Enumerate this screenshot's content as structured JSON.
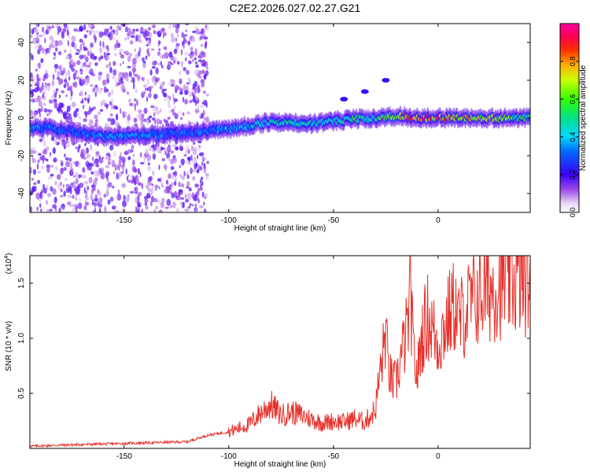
{
  "figure": {
    "title": "C2E2.2026.027.02.27.G21"
  },
  "chart_data": [
    {
      "type": "heatmap",
      "title": "C2E2.2026.027.02.27.G21",
      "xlabel": "Height of straight line (km)",
      "ylabel": "Frequency (Hz)",
      "xlim": [
        -195,
        44
      ],
      "ylim": [
        -50,
        50
      ],
      "x_ticks": [
        -150,
        -100,
        -50,
        0
      ],
      "y_ticks": [
        -40,
        -20,
        0,
        20,
        40
      ],
      "colorbar": {
        "label": "Normalized spectral amplitude",
        "range": [
          0.0,
          1.0
        ],
        "ticks": [
          0.0,
          0.2,
          0.4,
          0.6,
          0.8
        ],
        "tick_labels": [
          "0.0",
          "0.2",
          "0.4",
          "0.6",
          "0.8"
        ],
        "colormap": "rainbow (white-violet-blue-cyan-green-yellow-red-magenta)"
      },
      "ridge": {
        "description_points_x": [
          -190,
          -175,
          -160,
          -140,
          -120,
          -100,
          -80,
          -60,
          -45,
          -30,
          -20,
          -10,
          0,
          20,
          44
        ],
        "frequency_y": [
          -5,
          -7,
          -10,
          -9,
          -8,
          -6,
          -2,
          -3,
          -1,
          0,
          1,
          0,
          0,
          0,
          0
        ],
        "amplitude": [
          0.35,
          0.3,
          0.35,
          0.35,
          0.3,
          0.35,
          0.45,
          0.45,
          0.5,
          0.55,
          0.7,
          0.85,
          0.85,
          0.7,
          0.5
        ]
      },
      "secondary_branch": {
        "x": [
          -45,
          -35,
          -25
        ],
        "y": [
          10,
          14,
          20
        ]
      }
    },
    {
      "type": "line",
      "xlabel": "Height of straight line (km)",
      "ylabel": "SNR (10 * v/v)",
      "y_multiplier_label": "(x10",
      "y_multiplier_exponent": "4",
      "xlim": [
        -195,
        44
      ],
      "ylim": [
        0,
        17500
      ],
      "x_ticks": [
        -150,
        -100,
        -50,
        0
      ],
      "y_ticks": [
        5000,
        10000,
        15000
      ],
      "y_tick_labels": [
        "0.5",
        "1.0",
        "1.5"
      ],
      "color": "#e8302a",
      "series": [
        {
          "x": [
            -195,
            -180,
            -160,
            -140,
            -120,
            -110,
            -100,
            -90,
            -85,
            -80,
            -75,
            -70,
            -65,
            -60,
            -55,
            -50,
            -45,
            -40,
            -35,
            -30,
            -28,
            -26,
            -25,
            -24,
            -22,
            -20,
            -18,
            -15,
            -13,
            -12,
            -10,
            -8,
            -5,
            0,
            5,
            8,
            10,
            15,
            20,
            25,
            30,
            35,
            40,
            44
          ],
          "values": [
            200,
            300,
            400,
            500,
            600,
            1200,
            1500,
            2200,
            3200,
            4000,
            3000,
            3300,
            3000,
            2600,
            2300,
            2500,
            2400,
            2700,
            2400,
            3500,
            6500,
            9000,
            11000,
            7500,
            6000,
            6000,
            8000,
            10500,
            14000,
            9000,
            6500,
            10000,
            12000,
            9500,
            12000,
            13000,
            11500,
            13000,
            14000,
            14500,
            15000,
            15300,
            15400,
            15400
          ]
        }
      ]
    }
  ]
}
